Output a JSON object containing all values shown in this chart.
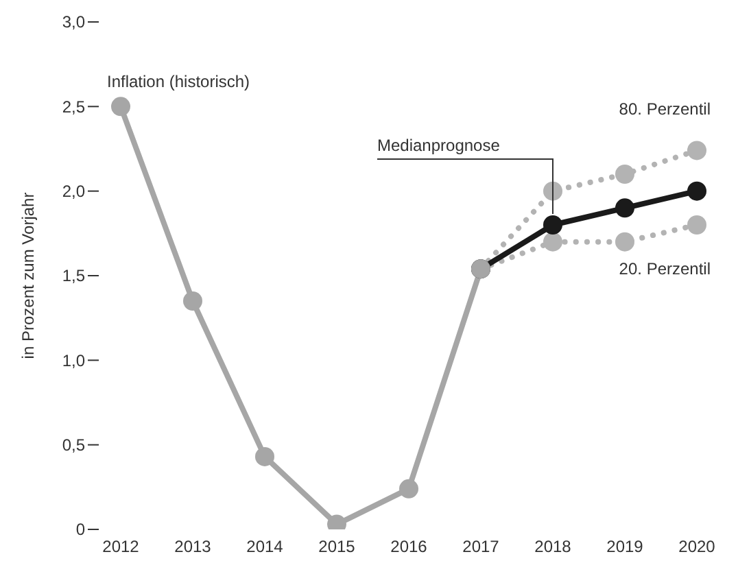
{
  "chart_data": {
    "type": "line",
    "ylabel": "in Prozent zum Vorjahr",
    "categories": [
      "2012",
      "2013",
      "2014",
      "2015",
      "2016",
      "2017",
      "2018",
      "2019",
      "2020"
    ],
    "series": [
      {
        "name": "Inflation (historisch)",
        "color": "#a6a6a6",
        "line_style": "solid",
        "values": [
          2.5,
          1.35,
          0.43,
          0.03,
          0.24,
          1.54,
          null,
          null,
          null
        ]
      },
      {
        "name": "Medianprognose",
        "color": "#1a1a1a",
        "line_style": "solid",
        "values": [
          null,
          null,
          null,
          null,
          null,
          1.54,
          1.8,
          1.9,
          2.0
        ]
      },
      {
        "name": "80. Perzentil",
        "color": "#b3b3b3",
        "line_style": "dotted",
        "values": [
          null,
          null,
          null,
          null,
          null,
          1.54,
          2.0,
          2.1,
          2.24
        ]
      },
      {
        "name": "20. Perzentil",
        "color": "#b3b3b3",
        "line_style": "dotted",
        "values": [
          null,
          null,
          null,
          null,
          null,
          1.54,
          1.7,
          1.7,
          1.8
        ]
      }
    ],
    "ylim": [
      0,
      3
    ],
    "yticks": [
      {
        "value": 0,
        "label": "0"
      },
      {
        "value": 0.5,
        "label": "0,5"
      },
      {
        "value": 1,
        "label": "1,0"
      },
      {
        "value": 1.5,
        "label": "1,5"
      },
      {
        "value": 2,
        "label": "2,0"
      },
      {
        "value": 2.5,
        "label": "2,5"
      },
      {
        "value": 3,
        "label": "3,0"
      }
    ],
    "grid": false,
    "legend": false,
    "marker": "circle"
  }
}
